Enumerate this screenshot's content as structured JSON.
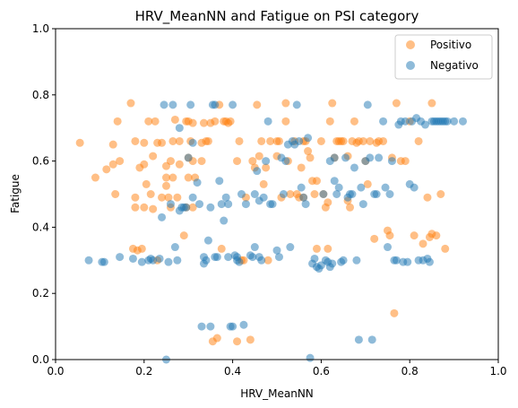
{
  "chart_data": {
    "type": "scatter",
    "title": "HRV_MeanNN and Fatigue on PSI category",
    "xlabel": "HRV_MeanNN",
    "ylabel": "Fatigue",
    "xlim": [
      0.0,
      1.0
    ],
    "ylim": [
      0.0,
      1.0
    ],
    "xticks": [
      "0.0",
      "0.2",
      "0.4",
      "0.6",
      "0.8",
      "1.0"
    ],
    "yticks": [
      "0.0",
      "0.2",
      "0.4",
      "0.6",
      "0.8",
      "1.0"
    ],
    "grid": false,
    "legend_position": "top-right",
    "series": [
      {
        "name": "Positivo",
        "color": "#ff7f0e",
        "points": [
          [
            0.055,
            0.655
          ],
          [
            0.09,
            0.55
          ],
          [
            0.115,
            0.575
          ],
          [
            0.13,
            0.59
          ],
          [
            0.13,
            0.65
          ],
          [
            0.135,
            0.5
          ],
          [
            0.14,
            0.72
          ],
          [
            0.145,
            0.6
          ],
          [
            0.17,
            0.775
          ],
          [
            0.175,
            0.335
          ],
          [
            0.18,
            0.46
          ],
          [
            0.18,
            0.49
          ],
          [
            0.18,
            0.66
          ],
          [
            0.185,
            0.33
          ],
          [
            0.19,
            0.58
          ],
          [
            0.195,
            0.335
          ],
          [
            0.2,
            0.655
          ],
          [
            0.2,
            0.59
          ],
          [
            0.2,
            0.46
          ],
          [
            0.205,
            0.53
          ],
          [
            0.21,
            0.72
          ],
          [
            0.215,
            0.5
          ],
          [
            0.22,
            0.615
          ],
          [
            0.22,
            0.455
          ],
          [
            0.225,
            0.72
          ],
          [
            0.23,
            0.655
          ],
          [
            0.23,
            0.3
          ],
          [
            0.24,
            0.49
          ],
          [
            0.24,
            0.655
          ],
          [
            0.25,
            0.585
          ],
          [
            0.25,
            0.55
          ],
          [
            0.25,
            0.525
          ],
          [
            0.255,
            0.49
          ],
          [
            0.26,
            0.6
          ],
          [
            0.265,
            0.66
          ],
          [
            0.265,
            0.55
          ],
          [
            0.26,
            0.46
          ],
          [
            0.27,
            0.725
          ],
          [
            0.275,
            0.49
          ],
          [
            0.28,
            0.66
          ],
          [
            0.28,
            0.59
          ],
          [
            0.29,
            0.375
          ],
          [
            0.295,
            0.46
          ],
          [
            0.295,
            0.72
          ],
          [
            0.3,
            0.72
          ],
          [
            0.3,
            0.61
          ],
          [
            0.3,
            0.55
          ],
          [
            0.305,
            0.66
          ],
          [
            0.31,
            0.6
          ],
          [
            0.31,
            0.715
          ],
          [
            0.31,
            0.46
          ],
          [
            0.315,
            0.55
          ],
          [
            0.33,
            0.655
          ],
          [
            0.33,
            0.6
          ],
          [
            0.335,
            0.715
          ],
          [
            0.34,
            0.66
          ],
          [
            0.345,
            0.66
          ],
          [
            0.35,
            0.715
          ],
          [
            0.355,
            0.055
          ],
          [
            0.36,
            0.72
          ],
          [
            0.365,
            0.065
          ],
          [
            0.37,
            0.77
          ],
          [
            0.375,
            0.335
          ],
          [
            0.38,
            0.72
          ],
          [
            0.385,
            0.72
          ],
          [
            0.39,
            0.715
          ],
          [
            0.395,
            0.72
          ],
          [
            0.41,
            0.6
          ],
          [
            0.41,
            0.055
          ],
          [
            0.415,
            0.66
          ],
          [
            0.42,
            0.3
          ],
          [
            0.425,
            0.3
          ],
          [
            0.43,
            0.49
          ],
          [
            0.44,
            0.06
          ],
          [
            0.445,
            0.6
          ],
          [
            0.45,
            0.58
          ],
          [
            0.455,
            0.77
          ],
          [
            0.46,
            0.615
          ],
          [
            0.465,
            0.66
          ],
          [
            0.47,
            0.53
          ],
          [
            0.475,
            0.58
          ],
          [
            0.48,
            0.3
          ],
          [
            0.485,
            0.66
          ],
          [
            0.5,
            0.615
          ],
          [
            0.5,
            0.66
          ],
          [
            0.505,
            0.66
          ],
          [
            0.51,
            0.49
          ],
          [
            0.52,
            0.72
          ],
          [
            0.52,
            0.775
          ],
          [
            0.525,
            0.6
          ],
          [
            0.53,
            0.5
          ],
          [
            0.54,
            0.66
          ],
          [
            0.545,
            0.5
          ],
          [
            0.55,
            0.49
          ],
          [
            0.555,
            0.58
          ],
          [
            0.56,
            0.66
          ],
          [
            0.56,
            0.49
          ],
          [
            0.565,
            0.66
          ],
          [
            0.57,
            0.63
          ],
          [
            0.575,
            0.61
          ],
          [
            0.58,
            0.54
          ],
          [
            0.585,
            0.5
          ],
          [
            0.59,
            0.54
          ],
          [
            0.59,
            0.335
          ],
          [
            0.6,
            0.66
          ],
          [
            0.605,
            0.5
          ],
          [
            0.61,
            0.46
          ],
          [
            0.615,
            0.475
          ],
          [
            0.615,
            0.335
          ],
          [
            0.62,
            0.72
          ],
          [
            0.625,
            0.775
          ],
          [
            0.63,
            0.61
          ],
          [
            0.635,
            0.66
          ],
          [
            0.64,
            0.66
          ],
          [
            0.645,
            0.66
          ],
          [
            0.65,
            0.66
          ],
          [
            0.66,
            0.615
          ],
          [
            0.66,
            0.48
          ],
          [
            0.665,
            0.46
          ],
          [
            0.67,
            0.66
          ],
          [
            0.675,
            0.72
          ],
          [
            0.68,
            0.655
          ],
          [
            0.685,
            0.66
          ],
          [
            0.695,
            0.66
          ],
          [
            0.7,
            0.6
          ],
          [
            0.705,
            0.53
          ],
          [
            0.71,
            0.66
          ],
          [
            0.72,
            0.365
          ],
          [
            0.725,
            0.655
          ],
          [
            0.73,
            0.66
          ],
          [
            0.74,
            0.66
          ],
          [
            0.75,
            0.39
          ],
          [
            0.755,
            0.375
          ],
          [
            0.76,
            0.61
          ],
          [
            0.765,
            0.14
          ],
          [
            0.77,
            0.775
          ],
          [
            0.78,
            0.6
          ],
          [
            0.79,
            0.6
          ],
          [
            0.8,
            0.72
          ],
          [
            0.81,
            0.375
          ],
          [
            0.82,
            0.66
          ],
          [
            0.83,
            0.35
          ],
          [
            0.84,
            0.49
          ],
          [
            0.845,
            0.37
          ],
          [
            0.85,
            0.38
          ],
          [
            0.85,
            0.775
          ],
          [
            0.86,
            0.375
          ],
          [
            0.87,
            0.5
          ],
          [
            0.88,
            0.335
          ]
        ]
      },
      {
        "name": "Negativo",
        "color": "#1f77b4",
        "points": [
          [
            0.075,
            0.3
          ],
          [
            0.105,
            0.295
          ],
          [
            0.11,
            0.295
          ],
          [
            0.145,
            0.31
          ],
          [
            0.175,
            0.305
          ],
          [
            0.195,
            0.295
          ],
          [
            0.21,
            0.3
          ],
          [
            0.215,
            0.305
          ],
          [
            0.22,
            0.3
          ],
          [
            0.235,
            0.305
          ],
          [
            0.24,
            0.43
          ],
          [
            0.245,
            0.77
          ],
          [
            0.25,
            0.0
          ],
          [
            0.255,
            0.295
          ],
          [
            0.26,
            0.47
          ],
          [
            0.265,
            0.77
          ],
          [
            0.27,
            0.34
          ],
          [
            0.275,
            0.3
          ],
          [
            0.28,
            0.7
          ],
          [
            0.28,
            0.45
          ],
          [
            0.285,
            0.46
          ],
          [
            0.29,
            0.46
          ],
          [
            0.295,
            0.46
          ],
          [
            0.3,
            0.61
          ],
          [
            0.305,
            0.77
          ],
          [
            0.31,
            0.49
          ],
          [
            0.31,
            0.655
          ],
          [
            0.32,
            0.535
          ],
          [
            0.325,
            0.47
          ],
          [
            0.33,
            0.1
          ],
          [
            0.335,
            0.31
          ],
          [
            0.335,
            0.29
          ],
          [
            0.34,
            0.3
          ],
          [
            0.345,
            0.36
          ],
          [
            0.35,
            0.46
          ],
          [
            0.35,
            0.1
          ],
          [
            0.355,
            0.77
          ],
          [
            0.36,
            0.77
          ],
          [
            0.36,
            0.31
          ],
          [
            0.365,
            0.31
          ],
          [
            0.37,
            0.54
          ],
          [
            0.375,
            0.47
          ],
          [
            0.38,
            0.42
          ],
          [
            0.385,
            0.49
          ],
          [
            0.39,
            0.47
          ],
          [
            0.39,
            0.31
          ],
          [
            0.395,
            0.1
          ],
          [
            0.4,
            0.1
          ],
          [
            0.4,
            0.77
          ],
          [
            0.405,
            0.315
          ],
          [
            0.41,
            0.31
          ],
          [
            0.41,
            0.3
          ],
          [
            0.415,
            0.295
          ],
          [
            0.42,
            0.5
          ],
          [
            0.425,
            0.105
          ],
          [
            0.43,
            0.47
          ],
          [
            0.44,
            0.315
          ],
          [
            0.445,
            0.31
          ],
          [
            0.45,
            0.5
          ],
          [
            0.45,
            0.34
          ],
          [
            0.455,
            0.57
          ],
          [
            0.46,
            0.48
          ],
          [
            0.46,
            0.31
          ],
          [
            0.465,
            0.3
          ],
          [
            0.47,
            0.49
          ],
          [
            0.475,
            0.6
          ],
          [
            0.48,
            0.72
          ],
          [
            0.485,
            0.47
          ],
          [
            0.49,
            0.47
          ],
          [
            0.5,
            0.33
          ],
          [
            0.505,
            0.31
          ],
          [
            0.51,
            0.61
          ],
          [
            0.515,
            0.5
          ],
          [
            0.52,
            0.6
          ],
          [
            0.525,
            0.65
          ],
          [
            0.53,
            0.34
          ],
          [
            0.535,
            0.66
          ],
          [
            0.54,
            0.65
          ],
          [
            0.545,
            0.77
          ],
          [
            0.55,
            0.66
          ],
          [
            0.555,
            0.52
          ],
          [
            0.56,
            0.49
          ],
          [
            0.565,
            0.47
          ],
          [
            0.57,
            0.67
          ],
          [
            0.575,
            0.005
          ],
          [
            0.58,
            0.29
          ],
          [
            0.585,
            0.305
          ],
          [
            0.59,
            0.28
          ],
          [
            0.595,
            0.275
          ],
          [
            0.6,
            0.285
          ],
          [
            0.605,
            0.5
          ],
          [
            0.61,
            0.3
          ],
          [
            0.615,
            0.295
          ],
          [
            0.62,
            0.28
          ],
          [
            0.625,
            0.29
          ],
          [
            0.63,
            0.61
          ],
          [
            0.635,
            0.5
          ],
          [
            0.64,
            0.52
          ],
          [
            0.645,
            0.295
          ],
          [
            0.65,
            0.3
          ],
          [
            0.655,
            0.61
          ],
          [
            0.66,
            0.49
          ],
          [
            0.665,
            0.5
          ],
          [
            0.67,
            0.5
          ],
          [
            0.675,
            0.58
          ],
          [
            0.68,
            0.3
          ],
          [
            0.685,
            0.06
          ],
          [
            0.69,
            0.52
          ],
          [
            0.695,
            0.47
          ],
          [
            0.7,
            0.6
          ],
          [
            0.705,
            0.77
          ],
          [
            0.71,
            0.61
          ],
          [
            0.715,
            0.06
          ],
          [
            0.72,
            0.5
          ],
          [
            0.725,
            0.5
          ],
          [
            0.73,
            0.61
          ],
          [
            0.74,
            0.72
          ],
          [
            0.745,
            0.52
          ],
          [
            0.75,
            0.34
          ],
          [
            0.755,
            0.5
          ],
          [
            0.76,
            0.6
          ],
          [
            0.765,
            0.3
          ],
          [
            0.77,
            0.3
          ],
          [
            0.775,
            0.71
          ],
          [
            0.78,
            0.72
          ],
          [
            0.785,
            0.295
          ],
          [
            0.79,
            0.72
          ],
          [
            0.795,
            0.295
          ],
          [
            0.8,
            0.53
          ],
          [
            0.805,
            0.72
          ],
          [
            0.81,
            0.52
          ],
          [
            0.815,
            0.73
          ],
          [
            0.82,
            0.3
          ],
          [
            0.825,
            0.72
          ],
          [
            0.83,
            0.3
          ],
          [
            0.835,
            0.71
          ],
          [
            0.84,
            0.305
          ],
          [
            0.845,
            0.295
          ],
          [
            0.85,
            0.72
          ],
          [
            0.855,
            0.72
          ],
          [
            0.86,
            0.72
          ],
          [
            0.865,
            0.72
          ],
          [
            0.87,
            0.72
          ],
          [
            0.875,
            0.72
          ],
          [
            0.88,
            0.72
          ],
          [
            0.885,
            0.72
          ],
          [
            0.9,
            0.72
          ],
          [
            0.92,
            0.72
          ],
          [
            0.62,
            0.6
          ],
          [
            0.63,
            0.54
          ]
        ]
      }
    ]
  }
}
